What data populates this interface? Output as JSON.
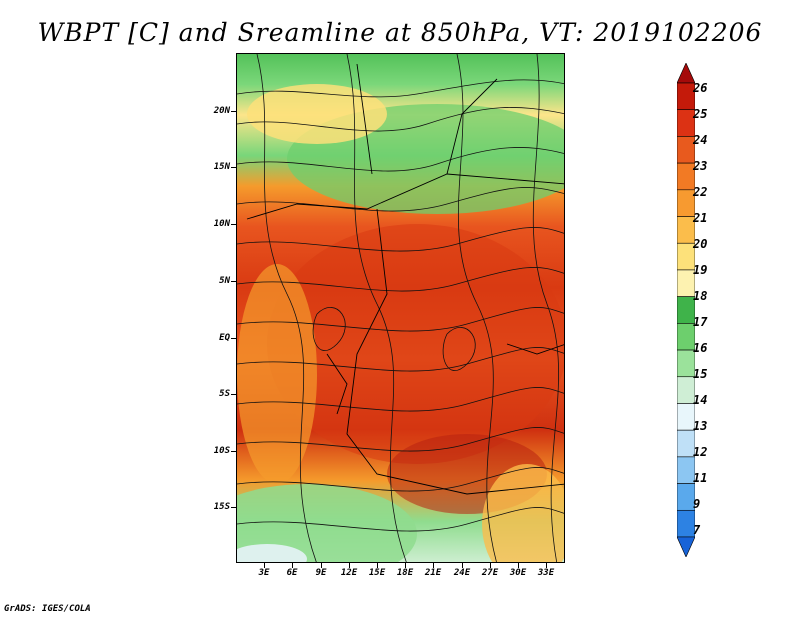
{
  "title": "WBPT [C] and Sreamline at 850hPa, VT: 2019102206",
  "credit": "GrADS: IGES/COLA",
  "lat_labels": [
    "20N",
    "15N",
    "10N",
    "5N",
    "EQ",
    "5S",
    "10S",
    "15S"
  ],
  "lon_labels": [
    "3E",
    "6E",
    "9E",
    "12E",
    "15E",
    "18E",
    "21E",
    "24E",
    "27E",
    "30E",
    "33E"
  ],
  "colorbar": {
    "labels": [
      "26",
      "25",
      "24",
      "23",
      "22",
      "21",
      "20",
      "19",
      "18",
      "17",
      "16",
      "15",
      "14",
      "13",
      "12",
      "11",
      "9",
      "7"
    ],
    "colors": [
      "#a50a0a",
      "#c41a0a",
      "#dc3214",
      "#e85a1e",
      "#f27a24",
      "#f79a30",
      "#fbbd4b",
      "#fde17a",
      "#fdf2b0",
      "#3fb34a",
      "#6dcf6d",
      "#9be29b",
      "#cfeed5",
      "#e8f6fb",
      "#bfe0f7",
      "#8cc6f2",
      "#5aa9ec",
      "#2d82e3",
      "#1763d8"
    ]
  }
}
